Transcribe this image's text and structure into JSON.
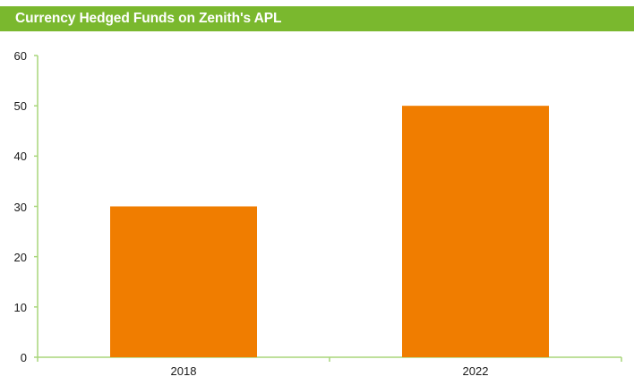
{
  "title": "Currency Hedged Funds on Zenith's APL",
  "colors": {
    "title_bar": "#7ab82e",
    "title_text": "#ffffff",
    "bar": "#f07d00",
    "axis": "#a9d67a"
  },
  "chart_data": {
    "type": "bar",
    "title": "Currency Hedged Funds on Zenith's APL",
    "categories": [
      "2018",
      "2022"
    ],
    "values": [
      30,
      50
    ],
    "xlabel": "",
    "ylabel": "",
    "ylim": [
      0,
      60
    ],
    "yticks": [
      "0",
      "10",
      "20",
      "30",
      "40",
      "50",
      "60"
    ],
    "grid": false,
    "legend": null
  }
}
